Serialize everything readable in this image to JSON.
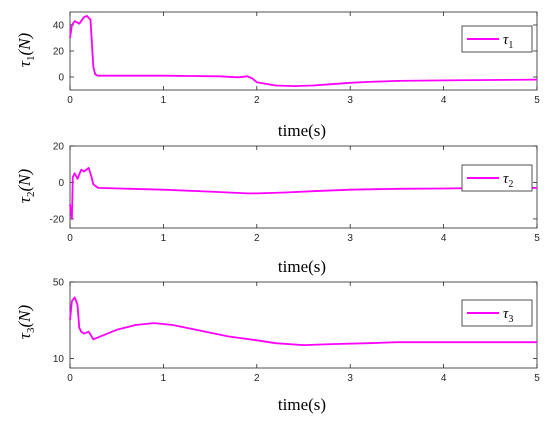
{
  "colors": {
    "series": "#ff00ff",
    "axis": "#262626",
    "background": "#ffffff"
  },
  "chart_data": [
    {
      "type": "line",
      "ylabel": "τ1(N)",
      "xlabel": "time(s)",
      "xlim": [
        0,
        5
      ],
      "ylim": [
        -10,
        50
      ],
      "xticks": [
        "0",
        "1",
        "2",
        "3",
        "4",
        "5"
      ],
      "yticks": [
        "0",
        "20",
        "40"
      ],
      "ytick_values": [
        0,
        20,
        40
      ],
      "legend": {
        "symbol": "τ",
        "index": "1",
        "position": "top-right"
      },
      "grid": false,
      "series": [
        {
          "name": "τ1",
          "x": [
            0,
            0.02,
            0.05,
            0.1,
            0.15,
            0.18,
            0.22,
            0.25,
            0.27,
            0.3,
            1.0,
            1.3,
            1.6,
            1.8,
            1.9,
            1.95,
            2.0,
            2.2,
            2.4,
            2.6,
            2.8,
            3.0,
            3.2,
            3.5,
            4.0,
            4.5,
            5.0
          ],
          "y": [
            30,
            40,
            43,
            41,
            46,
            47,
            44,
            8,
            2,
            1,
            1,
            0.8,
            0.5,
            -0.2,
            0.5,
            -1,
            -4,
            -6.5,
            -7,
            -6.5,
            -5.5,
            -4.5,
            -3.8,
            -3,
            -2.6,
            -2.3,
            -2
          ]
        }
      ]
    },
    {
      "type": "line",
      "ylabel": "τ2(N)",
      "xlabel": "time(s)",
      "xlim": [
        0,
        5
      ],
      "ylim": [
        -25,
        20
      ],
      "xticks": [
        "0",
        "1",
        "2",
        "3",
        "4",
        "5"
      ],
      "yticks": [
        "-20",
        "0",
        "20"
      ],
      "ytick_values": [
        -20,
        0,
        20
      ],
      "legend": {
        "symbol": "τ",
        "index": "2",
        "position": "top-right"
      },
      "grid": false,
      "series": [
        {
          "name": "τ2",
          "x": [
            0,
            0.02,
            0.03,
            0.05,
            0.08,
            0.12,
            0.15,
            0.2,
            0.23,
            0.25,
            0.3,
            1.0,
            1.5,
            1.9,
            2.0,
            2.3,
            2.6,
            3.0,
            3.5,
            4.0,
            4.5,
            5.0
          ],
          "y": [
            -12,
            -20,
            3,
            5,
            2,
            7,
            6,
            8,
            3,
            -1,
            -3,
            -4,
            -5,
            -6,
            -6,
            -5.5,
            -4.8,
            -4,
            -3.5,
            -3.3,
            -3,
            -3
          ]
        }
      ]
    },
    {
      "type": "line",
      "ylabel": "τ3(N)",
      "xlabel": "time(s)",
      "xlim": [
        0,
        5
      ],
      "ylim": [
        5,
        50
      ],
      "xticks": [
        "0",
        "1",
        "2",
        "3",
        "4",
        "5"
      ],
      "yticks": [
        "10",
        "50"
      ],
      "ytick_values": [
        10,
        50
      ],
      "legend": {
        "symbol": "τ",
        "index": "3",
        "position": "top-right"
      },
      "grid": false,
      "series": [
        {
          "name": "τ3",
          "x": [
            0,
            0.02,
            0.05,
            0.08,
            0.1,
            0.12,
            0.15,
            0.2,
            0.25,
            0.3,
            0.5,
            0.7,
            0.9,
            1.1,
            1.4,
            1.7,
            2.0,
            2.2,
            2.5,
            2.8,
            3.2,
            3.5,
            4.0,
            4.5,
            5.0
          ],
          "y": [
            30,
            40,
            42,
            38,
            26,
            24,
            23,
            24,
            20,
            21,
            25,
            27.5,
            28.5,
            27.5,
            24.5,
            21.5,
            19.5,
            18,
            17,
            17.5,
            18,
            18.5,
            18.5,
            18.5,
            18.5
          ]
        }
      ]
    }
  ]
}
